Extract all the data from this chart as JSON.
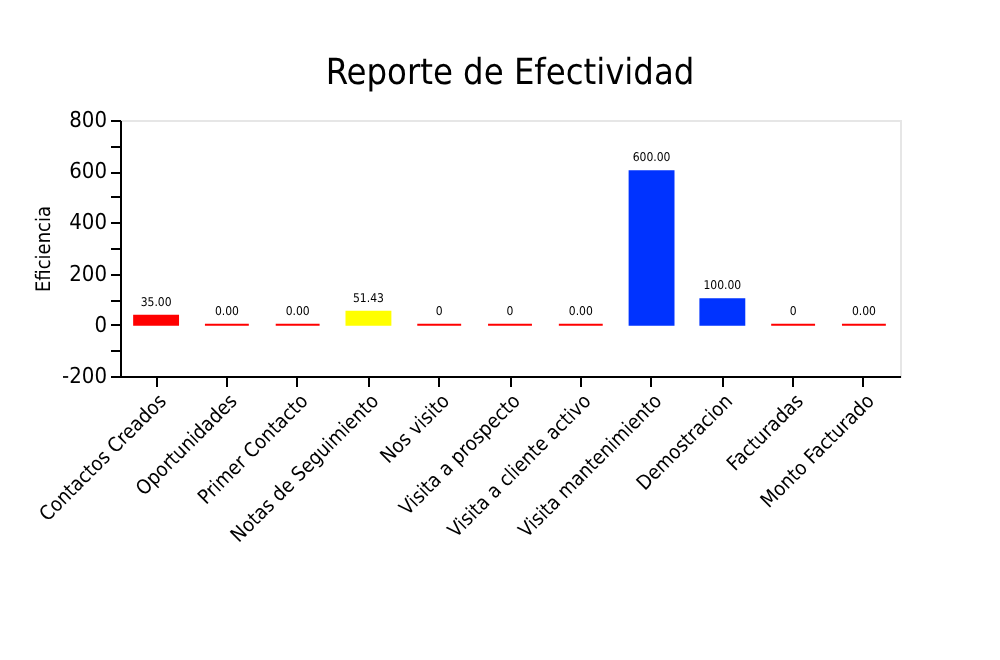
{
  "chart_data": {
    "type": "bar",
    "title": "Reporte de Efectividad",
    "ylabel": "Eficiencia",
    "categories": [
      "Contactos Creados",
      "Oportunidades",
      "Primer Contacto",
      "Notas de Seguimiento",
      "Nos visito",
      "Visita a prospecto",
      "Visita a cliente activo",
      "Visita mantenimiento",
      "Demostracion",
      "Facturadas",
      "Monto Facturado"
    ],
    "values": [
      35,
      0,
      0,
      51.43,
      0,
      0,
      0,
      600,
      100,
      0,
      0
    ],
    "value_labels": [
      "35.00",
      "0.00",
      "0.00",
      "51.43",
      "0",
      "0",
      "0.00",
      "600.00",
      "100.00",
      "0",
      "0.00"
    ],
    "colors": [
      "#ff0000",
      "#ff0000",
      "#ff0000",
      "#ffff00",
      "#ff0000",
      "#ff0000",
      "#ff0000",
      "#0033ff",
      "#0033ff",
      "#ff0000",
      "#ff0000"
    ],
    "ylim": [
      -200,
      800
    ],
    "yticks": [
      -200,
      {
        "value": -100,
        "label": null
      },
      0,
      {
        "value": 100,
        "label": null
      },
      200,
      {
        "value": 300,
        "label": null
      },
      400,
      {
        "value": 500,
        "label": null
      },
      600,
      {
        "value": 700,
        "label": null
      },
      800
    ],
    "grid": false
  }
}
